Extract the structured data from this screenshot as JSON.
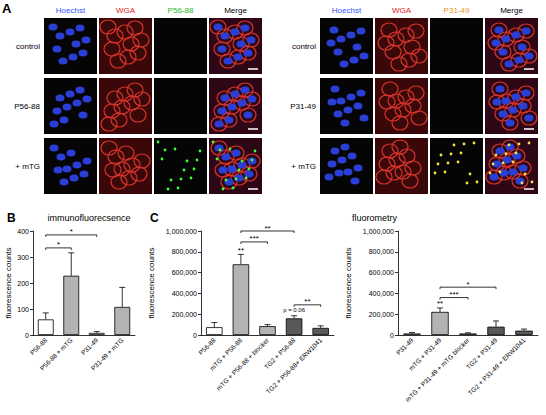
{
  "figure_a": {
    "letter": "A",
    "panels": [
      {
        "columns": [
          "Hoechst",
          "WGA",
          "P56-88",
          "Merge"
        ],
        "rows": [
          "control",
          "P56-88",
          "+ mTG"
        ]
      },
      {
        "columns": [
          "Hoechst",
          "WGA",
          "P31-49",
          "Merge"
        ],
        "rows": [
          "control",
          "P31-49",
          "+ mTG"
        ]
      }
    ]
  },
  "chart_data": [
    {
      "type": "bar",
      "letter": "B",
      "title": "immunofluorecsence",
      "ylabel": "fluorescence counts",
      "categories": [
        "P56-88",
        "P56-88 + mTG",
        "P31-49",
        "P31-49 + mTG"
      ],
      "values": [
        60,
        228,
        8,
        108
      ],
      "errors": [
        25,
        88,
        5,
        75
      ],
      "colors": [
        "#ffffff",
        "#b3b3b3",
        "#ffffff",
        "#b3b3b3"
      ],
      "ylim": [
        0,
        400
      ],
      "yticks": [
        0,
        100,
        200,
        300,
        400
      ],
      "grid": false,
      "brackets": [
        {
          "from": "P56-88",
          "to": "P56-88 + mTG",
          "y": 335,
          "label": "*"
        },
        {
          "from": "P56-88",
          "to": "P31-49",
          "y": 385,
          "label": "*"
        }
      ]
    },
    {
      "type": "bar",
      "letter": "C",
      "title": "fluorometry",
      "ylabel": "fluorescence counts",
      "categories": [
        "P56-88",
        "mTG + P56-88",
        "mTG + P56-88 + blocker",
        "TG2 + P56-88",
        "TG2 + P56-88+ ERW1041"
      ],
      "values": [
        75000,
        680000,
        85000,
        160000,
        68000
      ],
      "errors": [
        45000,
        95000,
        15000,
        25000,
        20000
      ],
      "colors": [
        "#ffffff",
        "#b3b3b3",
        "#b3b3b3",
        "#595959",
        "#595959"
      ],
      "ylim": [
        0,
        1000000
      ],
      "yticks": [
        0,
        {
          "value": 200000,
          "label": "200,000"
        },
        {
          "value": 400000,
          "label": "400,000"
        },
        {
          "value": 600000,
          "label": "600,000"
        },
        {
          "value": 800000,
          "label": "800,000"
        },
        {
          "value": 1000000,
          "label": "1,000,000"
        }
      ],
      "grid": false,
      "annotations": [
        {
          "category": "mTG + P56-88",
          "y": 775000,
          "label": "**"
        },
        {
          "category": "TG2 + P56-88",
          "y": 200000,
          "label": "p = 0.06"
        }
      ],
      "brackets": [
        {
          "from": "mTG + P56-88",
          "to": "mTG + P56-88 + blocker",
          "y": 895000,
          "label": "***"
        },
        {
          "from": "mTG + P56-88",
          "to": "TG2 + P56-88",
          "y": 1000000,
          "label": "**"
        },
        {
          "from": "TG2 + P56-88",
          "to": "TG2 + P56-88+ ERW1041",
          "y": 290000,
          "label": "**"
        }
      ]
    },
    {
      "type": "bar",
      "ylabel": "fluorescence counts",
      "categories": [
        "P31-49",
        "mTG + P31-49",
        "mTG + P31-49 + mTG blocker",
        "TG2 + P31-49",
        "TG2 + P31-49 + ERW1041"
      ],
      "values": [
        15000,
        222000,
        15000,
        80000,
        42000
      ],
      "errors": [
        8000,
        38000,
        6000,
        55000,
        15000
      ],
      "colors": [
        "#ffffff",
        "#b3b3b3",
        "#b3b3b3",
        "#595959",
        "#595959"
      ],
      "ylim": [
        0,
        1000000
      ],
      "yticks": [
        0,
        {
          "value": 200000,
          "label": "200,000"
        },
        {
          "value": 400000,
          "label": "400,000"
        },
        {
          "value": 600000,
          "label": "600,000"
        },
        {
          "value": 800000,
          "label": "800,000"
        },
        {
          "value": 1000000,
          "label": "1,000,000"
        }
      ],
      "grid": false,
      "annotations": [
        {
          "category": "mTG + P31-49",
          "y": 262000,
          "label": "**"
        }
      ],
      "brackets": [
        {
          "from": "mTG + P31-49",
          "to": "mTG + P31-49 + mTG blocker",
          "y": 360000,
          "label": "***"
        },
        {
          "from": "mTG + P31-49",
          "to": "TG2 + P31-49",
          "y": 460000,
          "label": "*"
        }
      ]
    }
  ]
}
